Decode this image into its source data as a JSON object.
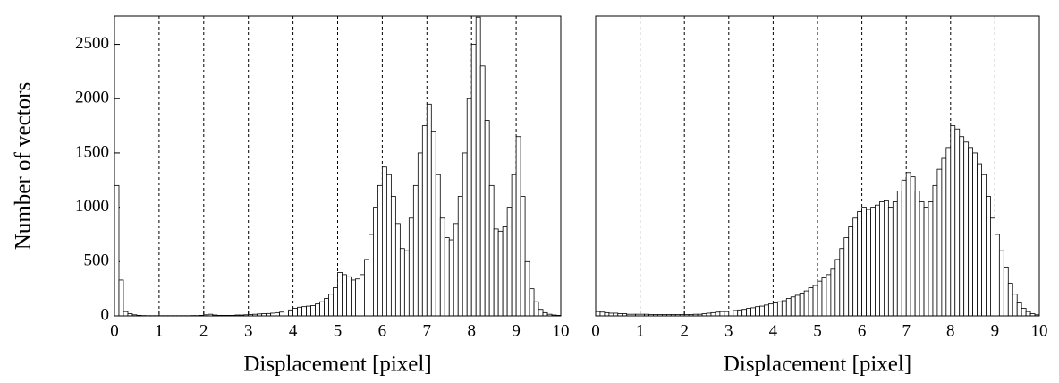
{
  "chart_data": [
    {
      "type": "histogram",
      "ylabel": "Number of vectors",
      "xlabel": "Displacement [pixel]",
      "bins": [
        0,
        0.1,
        0.2,
        0.3,
        0.4,
        0.5,
        0.6,
        0.7,
        0.8,
        0.9,
        1,
        1.1,
        1.2,
        1.3,
        1.4,
        1.5,
        1.6,
        1.7,
        1.8,
        1.9,
        2,
        2.1,
        2.2,
        2.3,
        2.4,
        2.5,
        2.6,
        2.7,
        2.8,
        2.9,
        3,
        3.1,
        3.2,
        3.3,
        3.4,
        3.5,
        3.6,
        3.7,
        3.8,
        3.9,
        4,
        4.1,
        4.2,
        4.3,
        4.4,
        4.5,
        4.6,
        4.7,
        4.8,
        4.9,
        5,
        5.1,
        5.2,
        5.3,
        5.4,
        5.5,
        5.6,
        5.7,
        5.8,
        5.9,
        6,
        6.1,
        6.2,
        6.3,
        6.4,
        6.5,
        6.6,
        6.7,
        6.8,
        6.9,
        7,
        7.1,
        7.2,
        7.3,
        7.4,
        7.5,
        7.6,
        7.7,
        7.8,
        7.9,
        8,
        8.1,
        8.2,
        8.3,
        8.4,
        8.5,
        8.6,
        8.7,
        8.8,
        8.9,
        9,
        9.1,
        9.2,
        9.3,
        9.4,
        9.5,
        9.6,
        9.7,
        9.8,
        9.9,
        10
      ],
      "values": [
        1200,
        330,
        40,
        20,
        10,
        5,
        3,
        2,
        2,
        2,
        2,
        2,
        2,
        2,
        2,
        2,
        2,
        3,
        3,
        5,
        10,
        15,
        8,
        5,
        5,
        5,
        5,
        8,
        8,
        10,
        12,
        15,
        18,
        20,
        22,
        25,
        30,
        35,
        45,
        55,
        70,
        80,
        85,
        90,
        95,
        110,
        130,
        160,
        200,
        260,
        400,
        380,
        360,
        330,
        340,
        380,
        520,
        750,
        1000,
        1200,
        1370,
        1300,
        1100,
        850,
        620,
        600,
        900,
        1200,
        1500,
        1750,
        1950,
        1700,
        1300,
        900,
        720,
        700,
        850,
        1100,
        1500,
        2000,
        2500,
        2750,
        2300,
        1800,
        1200,
        800,
        780,
        820,
        1000,
        1300,
        1650,
        1100,
        500,
        250,
        130,
        60,
        30,
        15,
        8,
        5
      ],
      "color": "#ffffff",
      "edgecolor": "#000000",
      "xlim": [
        0,
        10
      ],
      "xticks": [
        0,
        1,
        2,
        3,
        4,
        5,
        6,
        7,
        8,
        9,
        10
      ],
      "ylim": [
        0,
        2760
      ],
      "yticks": [
        0,
        500,
        1000,
        1500,
        2000,
        2500
      ],
      "grid": true
    },
    {
      "type": "histogram",
      "xlabel": "Displacement [pixel]",
      "bins": [
        0,
        0.1,
        0.2,
        0.3,
        0.4,
        0.5,
        0.6,
        0.7,
        0.8,
        0.9,
        1,
        1.1,
        1.2,
        1.3,
        1.4,
        1.5,
        1.6,
        1.7,
        1.8,
        1.9,
        2,
        2.1,
        2.2,
        2.3,
        2.4,
        2.5,
        2.6,
        2.7,
        2.8,
        2.9,
        3,
        3.1,
        3.2,
        3.3,
        3.4,
        3.5,
        3.6,
        3.7,
        3.8,
        3.9,
        4,
        4.1,
        4.2,
        4.3,
        4.4,
        4.5,
        4.6,
        4.7,
        4.8,
        4.9,
        5,
        5.1,
        5.2,
        5.3,
        5.4,
        5.5,
        5.6,
        5.7,
        5.8,
        5.9,
        6,
        6.1,
        6.2,
        6.3,
        6.4,
        6.5,
        6.6,
        6.7,
        6.8,
        6.9,
        7,
        7.1,
        7.2,
        7.3,
        7.4,
        7.5,
        7.6,
        7.7,
        7.8,
        7.9,
        8,
        8.1,
        8.2,
        8.3,
        8.4,
        8.5,
        8.6,
        8.7,
        8.8,
        8.9,
        9,
        9.1,
        9.2,
        9.3,
        9.4,
        9.5,
        9.6,
        9.7,
        9.8,
        9.9,
        10
      ],
      "values": [
        40,
        35,
        30,
        25,
        25,
        20,
        20,
        15,
        15,
        15,
        15,
        15,
        12,
        12,
        12,
        12,
        12,
        12,
        12,
        12,
        12,
        12,
        15,
        15,
        20,
        25,
        30,
        35,
        40,
        40,
        45,
        50,
        55,
        60,
        70,
        75,
        85,
        90,
        100,
        110,
        120,
        130,
        140,
        160,
        175,
        190,
        210,
        230,
        260,
        280,
        320,
        350,
        380,
        430,
        520,
        620,
        720,
        820,
        900,
        960,
        1000,
        980,
        1000,
        1020,
        1050,
        1060,
        1000,
        1050,
        1150,
        1250,
        1320,
        1280,
        1150,
        1050,
        1000,
        1050,
        1200,
        1350,
        1450,
        1550,
        1750,
        1720,
        1650,
        1600,
        1550,
        1500,
        1400,
        1300,
        1100,
        900,
        750,
        600,
        450,
        300,
        200,
        120,
        70,
        40,
        20,
        10
      ],
      "color": "#ffffff",
      "edgecolor": "#000000",
      "xlim": [
        0,
        10
      ],
      "xticks": [
        0,
        1,
        2,
        3,
        4,
        5,
        6,
        7,
        8,
        9,
        10
      ],
      "ylim": [
        0,
        2760
      ],
      "grid": true
    }
  ]
}
